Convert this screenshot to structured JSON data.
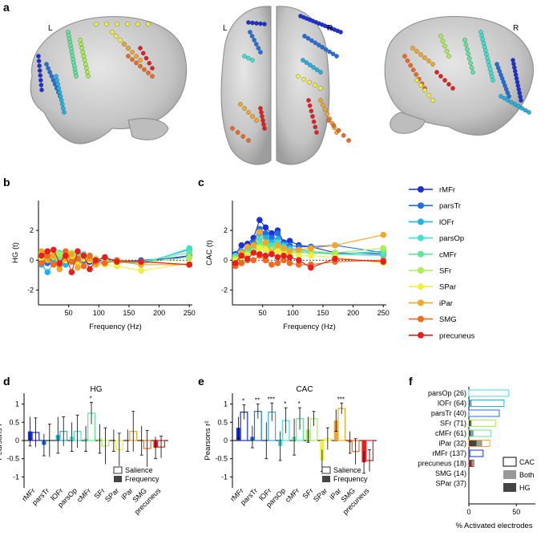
{
  "panels": {
    "a": "a",
    "b": "b",
    "c": "c",
    "d": "d",
    "e": "e",
    "f": "f"
  },
  "brain_labels": {
    "left1": "L",
    "left2": "L",
    "right2": "R",
    "right3": "R"
  },
  "colors": {
    "rMFr": "#1a2fd6",
    "parsTr": "#1f6fe0",
    "lOFr": "#22b3e6",
    "parsOp": "#3fe0d0",
    "cMFr": "#5fe69a",
    "SFr": "#a8f050",
    "SPar": "#f0f03a",
    "iPar": "#f5a623",
    "SMG": "#f06a1e",
    "precuneus": "#e81e1e"
  },
  "legend": {
    "items": [
      "rMFr",
      "parsTr",
      "lOFr",
      "parsOp",
      "cMFr",
      "SFr",
      "SPar",
      "iPar",
      "SMG",
      "precuneus"
    ]
  },
  "chart_data": [
    {
      "type": "line",
      "id": "b",
      "ylabel": "HG (t)",
      "xlabel": "Frequency (Hz)",
      "xticks": [
        50,
        100,
        150,
        200,
        250
      ],
      "yticks": [
        -2,
        0,
        2
      ],
      "ylim": [
        -3,
        4
      ],
      "xlim": [
        0,
        255
      ],
      "x": [
        5,
        15,
        25,
        35,
        45,
        55,
        65,
        75,
        85,
        95,
        110,
        130,
        170,
        250
      ],
      "series": [
        {
          "name": "rMFr",
          "values": [
            0.2,
            0.1,
            0.0,
            0.3,
            0.1,
            0.2,
            0.0,
            0.1,
            -0.1,
            0.0,
            0.1,
            0.0,
            -0.1,
            0.3
          ]
        },
        {
          "name": "parsTr",
          "values": [
            0.0,
            -0.2,
            0.1,
            0.0,
            -0.1,
            0.1,
            0.2,
            0.0,
            0.1,
            -0.1,
            0.0,
            -0.1,
            0.0,
            0.2
          ]
        },
        {
          "name": "lOFr",
          "values": [
            -0.3,
            -0.8,
            -0.2,
            0.1,
            -0.3,
            0.0,
            -0.1,
            0.2,
            0.0,
            -0.2,
            -0.1,
            0.0,
            -0.2,
            0.7
          ]
        },
        {
          "name": "parsOp",
          "values": [
            0.4,
            0.3,
            0.2,
            0.5,
            0.0,
            0.3,
            0.1,
            0.4,
            0.2,
            0.1,
            0.0,
            -0.1,
            -0.3,
            0.8
          ]
        },
        {
          "name": "cMFr",
          "values": [
            0.5,
            0.4,
            0.6,
            0.2,
            0.4,
            0.1,
            0.3,
            0.2,
            0.0,
            0.1,
            0.0,
            -0.2,
            -0.1,
            0.5
          ]
        },
        {
          "name": "SFr",
          "values": [
            0.3,
            0.6,
            0.2,
            0.4,
            0.2,
            0.5,
            0.1,
            0.3,
            0.2,
            0.1,
            0.0,
            -0.1,
            -0.2,
            0.2
          ]
        },
        {
          "name": "SPar",
          "values": [
            0.1,
            0.2,
            0.5,
            -0.4,
            0.0,
            0.2,
            -0.3,
            0.1,
            0.0,
            -0.2,
            -0.3,
            -0.4,
            -0.7,
            -0.2
          ]
        },
        {
          "name": "iPar",
          "values": [
            0.6,
            0.0,
            0.3,
            -0.6,
            0.1,
            0.4,
            -0.5,
            0.3,
            0.1,
            -0.3,
            -0.2,
            0.0,
            -0.3,
            -0.3
          ]
        },
        {
          "name": "SMG",
          "values": [
            -0.2,
            0.3,
            -0.3,
            -0.3,
            0.6,
            -0.1,
            0.1,
            -0.4,
            0.3,
            -0.1,
            -0.2,
            0.0,
            -0.1,
            -0.3
          ]
        },
        {
          "name": "precuneus",
          "values": [
            0.3,
            0.6,
            0.7,
            -0.2,
            0.3,
            -0.8,
            0.6,
            0.3,
            -0.6,
            0.0,
            0.2,
            -0.1,
            -0.1,
            -0.3
          ]
        }
      ]
    },
    {
      "type": "line",
      "id": "c",
      "ylabel": "CAC (t)",
      "xlabel": "Frequency (Hz)",
      "xticks": [
        50,
        100,
        150,
        200,
        250
      ],
      "yticks": [
        -2,
        0,
        2
      ],
      "ylim": [
        -3,
        4
      ],
      "xlim": [
        0,
        255
      ],
      "x": [
        5,
        15,
        25,
        35,
        45,
        55,
        65,
        75,
        85,
        95,
        110,
        130,
        170,
        250
      ],
      "series": [
        {
          "name": "rMFr",
          "values": [
            0.4,
            1.0,
            1.1,
            1.5,
            2.7,
            2.2,
            1.8,
            2.0,
            1.2,
            1.3,
            1.0,
            0.9,
            0.5,
            0.4
          ]
        },
        {
          "name": "parsTr",
          "values": [
            0.3,
            0.5,
            0.8,
            1.2,
            2.1,
            1.8,
            1.5,
            1.8,
            1.1,
            1.0,
            0.9,
            0.9,
            1.0,
            0.5
          ]
        },
        {
          "name": "lOFr",
          "values": [
            0.2,
            0.6,
            0.7,
            1.0,
            1.8,
            1.5,
            1.2,
            1.4,
            1.0,
            0.8,
            0.7,
            0.6,
            0.4,
            0.6
          ]
        },
        {
          "name": "parsOp",
          "values": [
            0.3,
            0.4,
            0.6,
            0.8,
            1.4,
            1.1,
            1.0,
            1.2,
            0.9,
            0.7,
            0.6,
            0.5,
            0.4,
            0.3
          ]
        },
        {
          "name": "cMFr",
          "values": [
            0.2,
            0.3,
            0.5,
            0.7,
            1.1,
            1.0,
            0.8,
            0.9,
            0.7,
            0.6,
            0.5,
            0.5,
            0.4,
            0.5
          ]
        },
        {
          "name": "SFr",
          "values": [
            0.1,
            0.3,
            0.4,
            0.6,
            0.9,
            0.9,
            0.7,
            0.8,
            0.6,
            0.5,
            0.5,
            0.6,
            0.5,
            0.8
          ]
        },
        {
          "name": "SPar",
          "values": [
            0.0,
            0.2,
            0.3,
            0.5,
            0.8,
            0.7,
            0.5,
            0.6,
            0.4,
            0.4,
            0.3,
            0.3,
            0.2,
            -0.2
          ]
        },
        {
          "name": "iPar",
          "values": [
            -0.2,
            0.5,
            0.9,
            1.0,
            1.9,
            1.2,
            0.5,
            1.0,
            0.8,
            0.6,
            0.7,
            0.8,
            1.0,
            1.7
          ]
        },
        {
          "name": "SMG",
          "values": [
            -0.4,
            -0.2,
            0.0,
            0.0,
            0.3,
            0.0,
            -0.3,
            -0.2,
            0.0,
            -0.2,
            -0.3,
            -0.3,
            -0.1,
            0.0
          ]
        },
        {
          "name": "precuneus",
          "values": [
            -0.2,
            0.3,
            0.1,
            0.5,
            0.4,
            0.3,
            0.4,
            0.2,
            0.3,
            0.2,
            0.0,
            -0.5,
            0.1,
            -0.1
          ]
        }
      ]
    },
    {
      "type": "bar",
      "id": "d",
      "title": "HG",
      "ylabel": "Pearsons r²",
      "yticks": [
        -1,
        -0.5,
        0,
        0.5,
        1
      ],
      "ylim": [
        -1.3,
        1.3
      ],
      "categories": [
        "rMFr",
        "parsTr",
        "lOFr",
        "parsOp",
        "cMFr",
        "SFr",
        "SPar",
        "iPar",
        "SMG",
        "precuneus"
      ],
      "series": [
        {
          "name": "Salience",
          "values": [
            0.22,
            0.0,
            0.25,
            0.25,
            0.75,
            -0.15,
            -0.25,
            0.25,
            -0.22,
            -0.18
          ],
          "errors": [
            0.4,
            0.45,
            0.4,
            0.45,
            0.3,
            0.5,
            0.45,
            0.55,
            0.5,
            0.3
          ]
        },
        {
          "name": "Frequency",
          "values": [
            0.25,
            -0.12,
            0.15,
            0.1,
            0.05,
            0.05,
            0.0,
            0.0,
            0.0,
            -0.2
          ],
          "errors": [
            0.4,
            0.3,
            0.5,
            0.4,
            0.35,
            0.4,
            0.3,
            0.3,
            0.4,
            0.3
          ]
        }
      ],
      "stars": [
        "",
        "",
        "",
        "",
        "*",
        "",
        "",
        "",
        "",
        ""
      ],
      "legend": [
        "Salience",
        "Frequency"
      ]
    },
    {
      "type": "bar",
      "id": "e",
      "title": "CAC",
      "ylabel": "Pearsons r²",
      "yticks": [
        -1,
        -0.5,
        0,
        0.5,
        1
      ],
      "ylim": [
        -1.3,
        1.3
      ],
      "categories": [
        "rMFr",
        "parsTr",
        "lOFr",
        "parsOp",
        "cMFr",
        "SFr",
        "SPar",
        "iPar",
        "SMG",
        "precuneus"
      ],
      "series": [
        {
          "name": "Salience",
          "values": [
            0.78,
            0.8,
            0.78,
            0.55,
            0.6,
            0.6,
            0.05,
            0.88,
            -0.3,
            -0.55
          ],
          "errors": [
            0.2,
            0.2,
            0.25,
            0.35,
            0.3,
            0.2,
            0.3,
            0.15,
            0.35,
            0.3
          ]
        },
        {
          "name": "Frequency",
          "values": [
            0.35,
            0.1,
            0.0,
            -0.15,
            0.1,
            0.3,
            -0.55,
            0.55,
            -0.05,
            -0.6
          ],
          "errors": [
            0.3,
            0.3,
            0.5,
            0.4,
            0.5,
            0.35,
            0.3,
            0.3,
            0.3,
            0.3
          ]
        }
      ],
      "stars": [
        "*",
        "**",
        "***",
        "*",
        "*",
        "",
        "",
        "***",
        "",
        ""
      ],
      "legend": [
        "Salience",
        "Frequency"
      ]
    },
    {
      "type": "bar",
      "id": "f",
      "orientation": "horizontal",
      "xlabel": "% Activated electrodes",
      "xticks": [
        0,
        50
      ],
      "xlim": [
        0,
        70
      ],
      "categories": [
        "parsOp (26)",
        "lOFr (64)",
        "parsTr (40)",
        "SFr (71)",
        "cMFr (61)",
        "iPar (32)",
        "rMFr (137)",
        "precuneus (18)",
        "SMG (14)",
        "SPar (37)"
      ],
      "keys": [
        "parsOp",
        "lOFr",
        "parsTr",
        "SFr",
        "cMFr",
        "iPar",
        "rMFr",
        "precuneus",
        "SMG",
        "SPar"
      ],
      "series": [
        {
          "name": "CAC",
          "values": [
            42,
            37,
            32,
            28,
            23,
            22,
            15,
            5,
            0,
            0
          ]
        },
        {
          "name": "Both",
          "values": [
            0,
            2,
            0,
            1,
            3,
            6,
            1,
            3,
            0,
            0
          ]
        },
        {
          "name": "HG",
          "values": [
            0,
            1,
            0,
            2,
            2,
            8,
            1,
            3,
            0,
            0
          ]
        }
      ],
      "legend": [
        "CAC",
        "Both",
        "HG"
      ]
    }
  ]
}
